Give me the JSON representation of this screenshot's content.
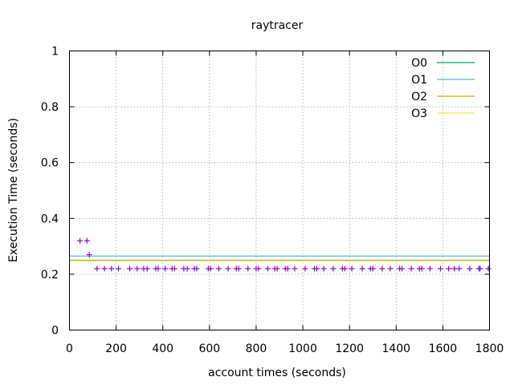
{
  "chart_data": {
    "type": "line",
    "title": "raytracer",
    "xlabel": "account times (seconds)",
    "ylabel": "Execution Time (seconds)",
    "xlim": [
      0,
      1800
    ],
    "ylim": [
      0,
      1
    ],
    "xticks": [
      0,
      200,
      400,
      600,
      800,
      1000,
      1200,
      1400,
      1600,
      1800
    ],
    "yticks": [
      0,
      0.2,
      0.4,
      0.6,
      0.8,
      1
    ],
    "xtick_labels": [
      "0",
      "200",
      "400",
      "600",
      "800",
      "1000",
      "1200",
      "1400",
      "1600",
      "1800"
    ],
    "ytick_labels": [
      "0",
      "0.2",
      "0.4",
      "0.6",
      "0.8",
      "1"
    ],
    "grid": true,
    "legend_position": "top-right",
    "series": [
      {
        "name": "O0",
        "kind": "hline",
        "value": 0.25,
        "color": "#009e73"
      },
      {
        "name": "O1",
        "kind": "hline",
        "value": 0.265,
        "color": "#56b4e9"
      },
      {
        "name": "O2",
        "kind": "hline",
        "value": 0.249,
        "color": "#e69f00"
      },
      {
        "name": "O3",
        "kind": "hline",
        "value": 0.248,
        "color": "#f0e442"
      }
    ],
    "scatter": {
      "color": "#9400d3",
      "marker": "+",
      "points": [
        [
          45,
          0.32
        ],
        [
          75,
          0.32
        ],
        [
          85,
          0.27
        ],
        [
          118,
          0.22
        ],
        [
          150,
          0.22
        ],
        [
          180,
          0.22
        ],
        [
          210,
          0.22
        ],
        [
          258,
          0.22
        ],
        [
          290,
          0.22
        ],
        [
          318,
          0.22
        ],
        [
          333,
          0.22
        ],
        [
          370,
          0.22
        ],
        [
          380,
          0.22
        ],
        [
          410,
          0.22
        ],
        [
          440,
          0.22
        ],
        [
          450,
          0.22
        ],
        [
          490,
          0.22
        ],
        [
          505,
          0.22
        ],
        [
          535,
          0.22
        ],
        [
          545,
          0.22
        ],
        [
          595,
          0.22
        ],
        [
          605,
          0.22
        ],
        [
          640,
          0.22
        ],
        [
          680,
          0.22
        ],
        [
          715,
          0.22
        ],
        [
          725,
          0.22
        ],
        [
          765,
          0.22
        ],
        [
          800,
          0.22
        ],
        [
          810,
          0.22
        ],
        [
          850,
          0.22
        ],
        [
          880,
          0.22
        ],
        [
          890,
          0.22
        ],
        [
          925,
          0.22
        ],
        [
          935,
          0.22
        ],
        [
          965,
          0.22
        ],
        [
          1010,
          0.22
        ],
        [
          1050,
          0.22
        ],
        [
          1060,
          0.22
        ],
        [
          1090,
          0.22
        ],
        [
          1130,
          0.22
        ],
        [
          1170,
          0.22
        ],
        [
          1180,
          0.22
        ],
        [
          1210,
          0.22
        ],
        [
          1255,
          0.22
        ],
        [
          1290,
          0.22
        ],
        [
          1300,
          0.22
        ],
        [
          1340,
          0.22
        ],
        [
          1375,
          0.22
        ],
        [
          1415,
          0.22
        ],
        [
          1425,
          0.22
        ],
        [
          1465,
          0.22
        ],
        [
          1500,
          0.22
        ],
        [
          1510,
          0.22
        ],
        [
          1545,
          0.22
        ],
        [
          1590,
          0.22
        ],
        [
          1625,
          0.22
        ],
        [
          1650,
          0.22
        ],
        [
          1670,
          0.22
        ],
        [
          1715,
          0.22
        ],
        [
          1755,
          0.22
        ],
        [
          1760,
          0.22
        ],
        [
          1795,
          0.22
        ]
      ]
    }
  }
}
